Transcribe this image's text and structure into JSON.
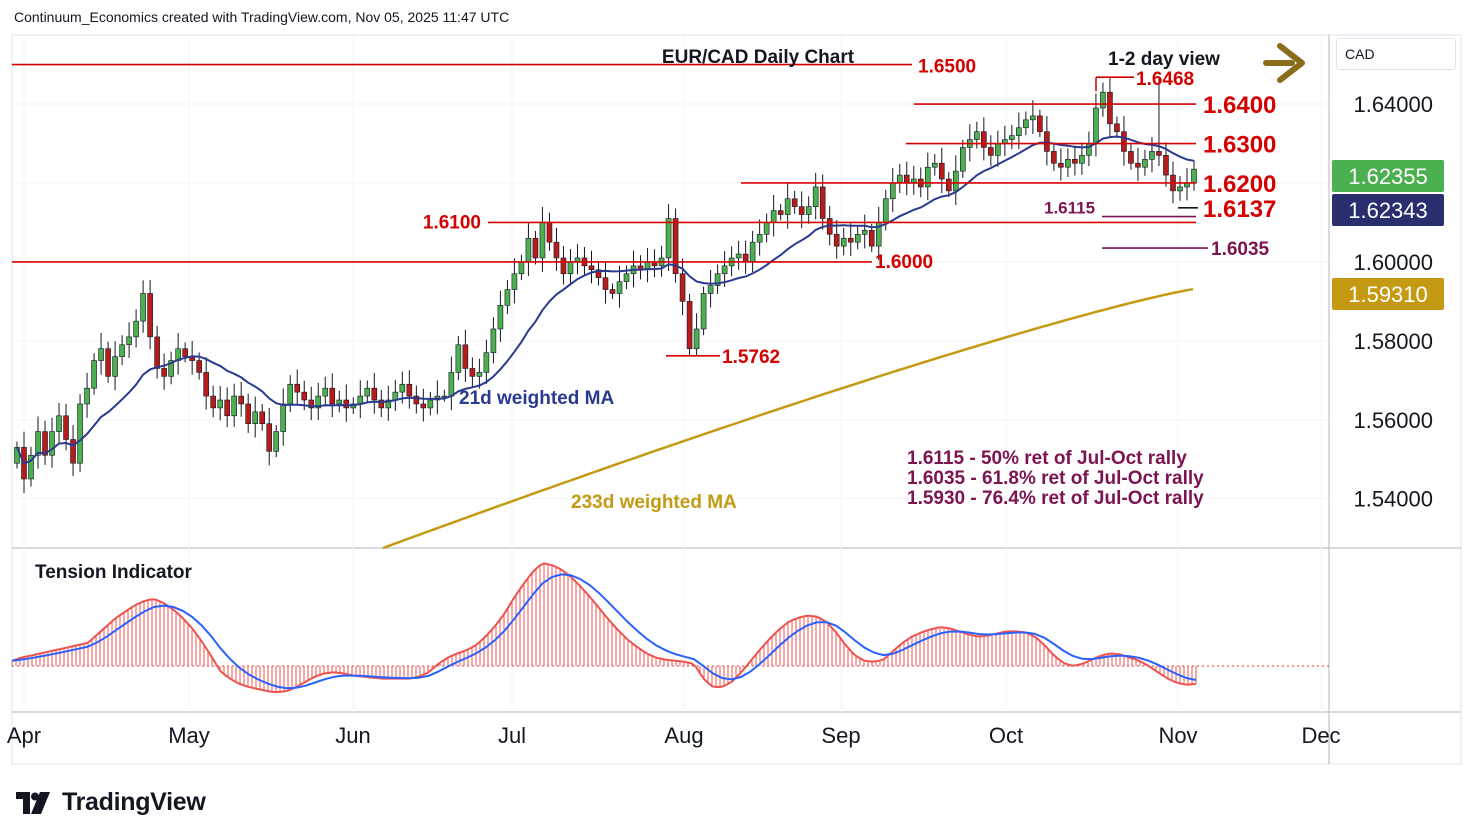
{
  "header": {
    "attribution": "Continuum_Economics created with TradingView.com, Nov 05, 2025 11:47 UTC"
  },
  "brand": {
    "name": "TradingView"
  },
  "currency_box": {
    "label": "CAD"
  },
  "colors": {
    "candle_up": "#4caf50",
    "candle_down": "#b71c1c",
    "level_line": "#d50000",
    "ret_line": "#7b1450",
    "ma21": "#2a3a8f",
    "ma233": "#c49a12",
    "tension_hist": "#ef5350",
    "tension_signal": "#2962ff",
    "arrow": "#8a6d1a"
  },
  "chart_data": [
    {
      "type": "candlestick",
      "title": "EUR/CAD Daily Chart",
      "view_label": "1-2 day view",
      "x_tick_labels": [
        "Apr",
        "May",
        "Jun",
        "Jul",
        "Aug",
        "Sep",
        "Oct",
        "Nov",
        "Dec"
      ],
      "y_tick_labels": [
        "1.54000",
        "1.56000",
        "1.58000",
        "1.60000",
        "1.64000"
      ],
      "ylim": [
        1.5275,
        1.6575
      ],
      "horizontal_levels": [
        {
          "value": 1.65,
          "label": "1.6500",
          "span": "Apr-Sep"
        },
        {
          "value": 1.6468,
          "label": "1.6468",
          "span": "Oct"
        },
        {
          "value": 1.64,
          "label": "1.6400",
          "span": "Sep-Oct"
        },
        {
          "value": 1.63,
          "label": "1.6300",
          "span": "Sep-Nov"
        },
        {
          "value": 1.62,
          "label": "1.6200",
          "span": "Aug-Nov"
        },
        {
          "value": 1.6137,
          "label": "1.6137",
          "span": "Nov"
        },
        {
          "value": 1.6115,
          "label": "1.6115",
          "span": "Oct-Nov"
        },
        {
          "value": 1.61,
          "label": "1.6100",
          "span": "Jul-Nov"
        },
        {
          "value": 1.6035,
          "label": "1.6035",
          "span": "Oct-Nov"
        },
        {
          "value": 1.6,
          "label": "1.6000",
          "span": "Apr-Sep"
        },
        {
          "value": 1.5762,
          "label": "1.5762",
          "span": "Jul-Aug"
        }
      ],
      "price_badges": [
        {
          "value": "1.62355",
          "color": "#4caf50"
        },
        {
          "value": "1.62343",
          "color": "#2a2e6e"
        },
        {
          "value": "1.59310",
          "color": "#c49a12"
        }
      ],
      "annotations": [
        "21d weighted MA",
        "233d weighted MA",
        "1.6115 - 50% ret of Jul-Oct rally",
        "1.6035 - 61.8% ret of Jul-Oct rally",
        "1.5930 - 76.4% ret of Jul-Oct rally"
      ],
      "closes": [
        1.553,
        1.545,
        1.551,
        1.557,
        1.551,
        1.557,
        1.561,
        1.555,
        1.549,
        1.564,
        1.568,
        1.575,
        1.578,
        1.571,
        1.576,
        1.579,
        1.581,
        1.585,
        1.592,
        1.581,
        1.573,
        1.571,
        1.575,
        1.578,
        1.576,
        1.575,
        1.572,
        1.566,
        1.563,
        1.565,
        1.561,
        1.566,
        1.564,
        1.559,
        1.562,
        1.559,
        1.552,
        1.557,
        1.564,
        1.569,
        1.567,
        1.565,
        1.563,
        1.566,
        1.568,
        1.564,
        1.565,
        1.563,
        1.564,
        1.566,
        1.568,
        1.565,
        1.563,
        1.565,
        1.567,
        1.569,
        1.566,
        1.564,
        1.563,
        1.565,
        1.566,
        1.566,
        1.572,
        1.579,
        1.573,
        1.571,
        1.572,
        1.577,
        1.583,
        1.589,
        1.593,
        1.597,
        1.6,
        1.606,
        1.601,
        1.61,
        1.605,
        1.601,
        1.597,
        1.6,
        1.601,
        1.599,
        1.598,
        1.596,
        1.593,
        1.592,
        1.595,
        1.597,
        1.599,
        1.598,
        1.6,
        1.599,
        1.601,
        1.611,
        1.597,
        1.59,
        1.578,
        1.583,
        1.592,
        1.594,
        1.597,
        1.599,
        1.601,
        1.602,
        1.6,
        1.605,
        1.607,
        1.61,
        1.613,
        1.612,
        1.616,
        1.614,
        1.612,
        1.614,
        1.619,
        1.611,
        1.607,
        1.604,
        1.606,
        1.605,
        1.607,
        1.608,
        1.604,
        1.61,
        1.616,
        1.62,
        1.622,
        1.62,
        1.621,
        1.619,
        1.624,
        1.625,
        1.621,
        1.618,
        1.623,
        1.629,
        1.631,
        1.633,
        1.629,
        1.627,
        1.63,
        1.631,
        1.632,
        1.634,
        1.636,
        1.637,
        1.633,
        1.628,
        1.625,
        1.624,
        1.626,
        1.625,
        1.627,
        1.63,
        1.639,
        1.643,
        1.635,
        1.633,
        1.628,
        1.625,
        1.624,
        1.626,
        1.628,
        1.627,
        1.622,
        1.618,
        1.619,
        1.62,
        1.6235
      ],
      "ma21_last": 1.6234,
      "ma233_last": 1.5931
    },
    {
      "type": "bar",
      "title": "Tension Indicator",
      "series": [
        {
          "values": [
            0.05,
            0.08,
            0.1,
            0.12,
            0.14,
            0.16,
            0.18,
            0.2,
            0.22,
            0.3,
            0.38,
            0.46,
            0.52,
            0.58,
            0.62,
            0.64,
            0.6,
            0.54,
            0.46,
            0.36,
            0.24,
            0.1,
            -0.05,
            -0.12,
            -0.17,
            -0.2,
            -0.22,
            -0.24,
            -0.25,
            -0.24,
            -0.2,
            -0.15,
            -0.1,
            -0.07,
            -0.06,
            -0.07,
            -0.09,
            -0.1,
            -0.11,
            -0.12,
            -0.12,
            -0.12,
            -0.12,
            -0.1,
            -0.06,
            0.02,
            0.08,
            0.12,
            0.15,
            0.2,
            0.28,
            0.38,
            0.5,
            0.65,
            0.78,
            0.9,
            0.98,
            0.96,
            0.92,
            0.85,
            0.76,
            0.66,
            0.55,
            0.44,
            0.34,
            0.25,
            0.18,
            0.12,
            0.08,
            0.06,
            0.05,
            0.04,
            0.02,
            -0.12,
            -0.2,
            -0.2,
            -0.15,
            -0.06,
            0.05,
            0.16,
            0.26,
            0.35,
            0.42,
            0.46,
            0.48,
            0.47,
            0.42,
            0.32,
            0.2,
            0.1,
            0.05,
            0.04,
            0.06,
            0.14,
            0.22,
            0.28,
            0.32,
            0.35,
            0.37,
            0.36,
            0.33,
            0.3,
            0.28,
            0.29,
            0.31,
            0.33,
            0.33,
            0.32,
            0.28,
            0.2,
            0.1,
            0.03,
            0.0,
            0.02,
            0.06,
            0.1,
            0.12,
            0.11,
            0.08,
            0.05,
            0.0,
            -0.06,
            -0.12,
            -0.16,
            -0.18,
            -0.17
          ]
        }
      ]
    }
  ]
}
